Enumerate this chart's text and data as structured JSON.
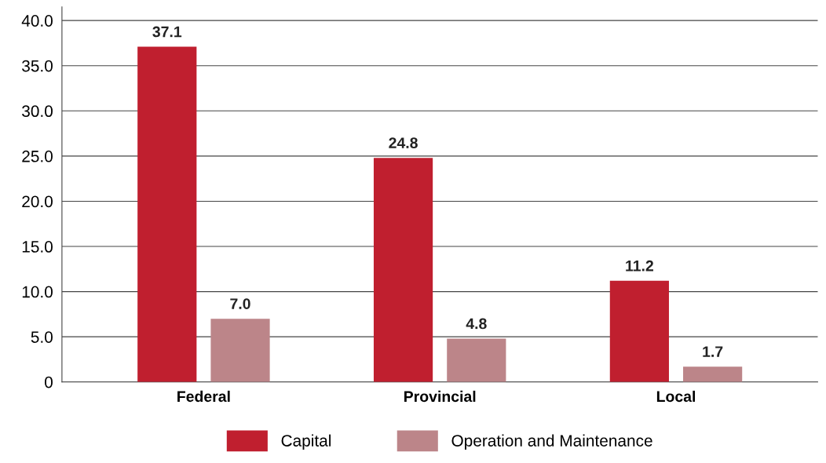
{
  "chart_data": {
    "type": "bar",
    "categories": [
      "Federal",
      "Provincial",
      "Local"
    ],
    "series": [
      {
        "name": "Capital",
        "color": "#c01f2f",
        "values": [
          37.1,
          24.8,
          11.2
        ],
        "value_labels": [
          "37.1",
          "24.8",
          "11.2"
        ]
      },
      {
        "name": "Operation and Maintenance",
        "color": "#bc8589",
        "values": [
          7.0,
          4.8,
          1.7
        ],
        "value_labels": [
          "7.0",
          "4.8",
          "1.7"
        ]
      }
    ],
    "ylim": [
      0,
      41.5
    ],
    "yticks": [
      0,
      {
        "value": 5,
        "label": "5.0"
      },
      {
        "value": 10,
        "label": "10.0"
      },
      {
        "value": 15,
        "label": "15.0"
      },
      {
        "value": 20,
        "label": "20.0"
      },
      {
        "value": 25,
        "label": "25.0"
      },
      {
        "value": 30,
        "label": "30.0"
      },
      {
        "value": 35,
        "label": "35.0"
      },
      {
        "value": 40,
        "label": "40.0"
      }
    ],
    "grid": "y",
    "legend": "bottom"
  }
}
